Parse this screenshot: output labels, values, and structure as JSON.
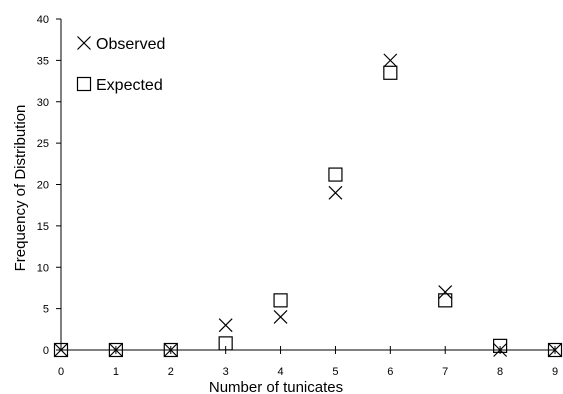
{
  "chart_data": {
    "type": "scatter",
    "xlabel": "Number of tunicates",
    "ylabel": "Frequency of Distribution",
    "xlim": [
      0,
      9
    ],
    "ylim": [
      0,
      40
    ],
    "x_ticks": [
      "0",
      "1",
      "2",
      "3",
      "4",
      "5",
      "6",
      "7",
      "8",
      "9"
    ],
    "y_ticks": [
      "0",
      "5",
      "10",
      "15",
      "20",
      "25",
      "30",
      "35",
      "40"
    ],
    "grid": false,
    "legend_position": "top-left",
    "series": [
      {
        "name": "Observed",
        "marker": "x",
        "x": [
          0,
          1,
          2,
          3,
          4,
          5,
          6,
          7,
          8,
          9
        ],
        "y": [
          0,
          0,
          0,
          3,
          4,
          19,
          35,
          7,
          0,
          0
        ]
      },
      {
        "name": "Expected",
        "marker": "square",
        "x": [
          0,
          1,
          2,
          3,
          4,
          5,
          6,
          7,
          8,
          9
        ],
        "y": [
          0,
          0,
          0,
          0.8,
          6,
          21.2,
          33.5,
          6,
          0.5,
          0
        ]
      }
    ]
  }
}
